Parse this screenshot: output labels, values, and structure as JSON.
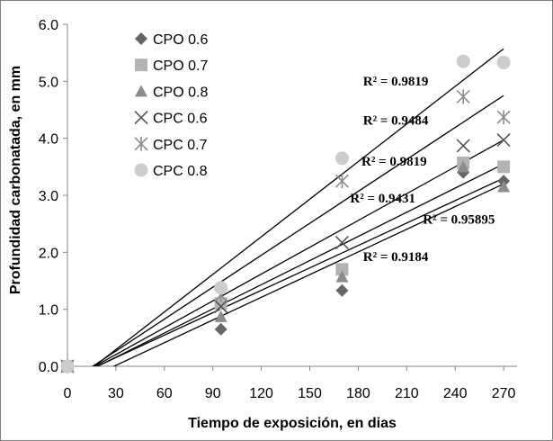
{
  "chart_data": {
    "type": "scatter",
    "title": "",
    "xlabel": "Tiempo de exposición, en dias",
    "ylabel": "Profundidad carbonatada, en mm",
    "xlim": [
      0,
      280
    ],
    "ylim": [
      0,
      6
    ],
    "xticks": [
      "0",
      "30",
      "60",
      "90",
      "120",
      "150",
      "180",
      "210",
      "240",
      "270"
    ],
    "yticks": [
      "0.0",
      "1.0",
      "2.0",
      "3.0",
      "4.0",
      "5.0",
      "6.0"
    ],
    "grid": false,
    "legend_position": "top-left",
    "series": [
      {
        "name": "CPO 0.6",
        "marker": "diamond",
        "color": "#666666",
        "x": [
          0,
          95,
          170,
          245,
          270
        ],
        "y": [
          0,
          0.65,
          1.33,
          3.4,
          3.25
        ]
      },
      {
        "name": "CPO 0.7",
        "marker": "square",
        "color": "#b3b3b3",
        "x": [
          0,
          95,
          170,
          245,
          270
        ],
        "y": [
          0,
          1.1,
          1.7,
          3.57,
          3.5
        ]
      },
      {
        "name": "CPO 0.8",
        "marker": "triangle",
        "color": "#8c8c8c",
        "x": [
          0,
          95,
          170,
          245,
          270
        ],
        "y": [
          0,
          0.87,
          1.57,
          3.5,
          3.15
        ]
      },
      {
        "name": "CPC 0.6",
        "marker": "x",
        "color": "#555555",
        "x": [
          0,
          95,
          170,
          245,
          270
        ],
        "y": [
          0,
          1.05,
          2.17,
          3.87,
          3.97
        ]
      },
      {
        "name": "CPC 0.7",
        "marker": "asterisk",
        "color": "#8c8c8c",
        "x": [
          0,
          95,
          170,
          245,
          270
        ],
        "y": [
          0,
          1.25,
          3.25,
          4.73,
          4.37
        ]
      },
      {
        "name": "CPC 0.8",
        "marker": "circle",
        "color": "#cccccc",
        "x": [
          0,
          95,
          170,
          245,
          270
        ],
        "y": [
          0,
          1.38,
          3.65,
          5.35,
          5.33
        ]
      }
    ],
    "trendlines": [
      {
        "x": [
          13,
          270
        ],
        "y": [
          -0.08,
          5.57
        ]
      },
      {
        "x": [
          13,
          270
        ],
        "y": [
          -0.05,
          4.75
        ]
      },
      {
        "x": [
          13,
          270
        ],
        "y": [
          -0.06,
          3.97
        ]
      },
      {
        "x": [
          13,
          270
        ],
        "y": [
          -0.08,
          3.55
        ]
      },
      {
        "x": [
          13,
          270
        ],
        "y": [
          -0.07,
          3.3
        ]
      },
      {
        "x": [
          25,
          270
        ],
        "y": [
          -0.05,
          3.2
        ]
      }
    ],
    "annotations": [
      {
        "text": "R² = 0.9819",
        "x": 183,
        "y": 4.93
      },
      {
        "text": "R² = 0.9484",
        "x": 183,
        "y": 4.24
      },
      {
        "text": "R² = 0.9819",
        "x": 182,
        "y": 3.52
      },
      {
        "text": "R² = 0.9431",
        "x": 175,
        "y": 2.87
      },
      {
        "text": "R² = 0.95895",
        "x": 220,
        "y": 2.5
      },
      {
        "text": "R² = 0.9184",
        "x": 183,
        "y": 1.85
      }
    ]
  }
}
